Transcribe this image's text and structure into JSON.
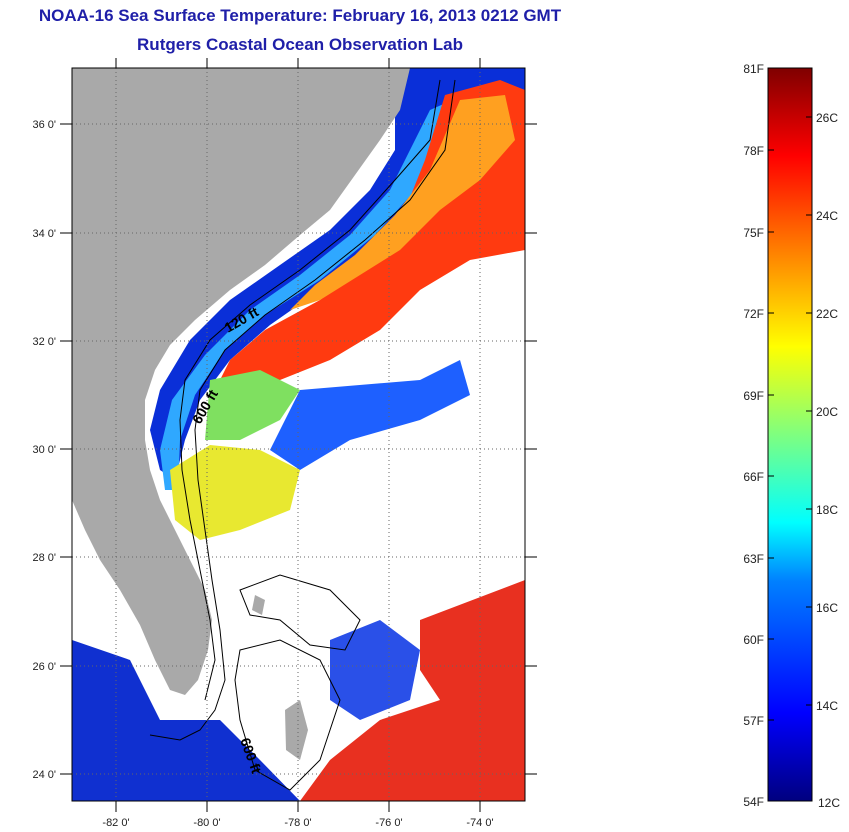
{
  "title": "NOAA-16 Sea Surface Temperature:  February 16, 2013 0212 GMT",
  "subtitle": "Rutgers Coastal Ocean Observation Lab",
  "map": {
    "lon_range": [
      -83,
      -73
    ],
    "lat_range": [
      23,
      37
    ],
    "lon_ticks": [
      {
        "value": -82,
        "label": "-82 0'"
      },
      {
        "value": -80,
        "label": "-80 0'"
      },
      {
        "value": -78,
        "label": "-78 0'"
      },
      {
        "value": -76,
        "label": "-76 0'"
      },
      {
        "value": -74,
        "label": "-74 0'"
      }
    ],
    "lat_ticks": [
      {
        "value": 36,
        "label": "36 0'"
      },
      {
        "value": 34,
        "label": "34 0'"
      },
      {
        "value": 32,
        "label": "32 0'"
      },
      {
        "value": 30,
        "label": "30 0'"
      },
      {
        "value": 28,
        "label": "28 0'"
      },
      {
        "value": 26,
        "label": "26 0'"
      },
      {
        "value": 24,
        "label": "24 0'"
      }
    ],
    "contour_labels": [
      "120 ft",
      "600 ft",
      "600 ft"
    ],
    "colors": {
      "land": "#a9a9a9",
      "cloud": "#ffffff"
    }
  },
  "colorbar": {
    "fahrenheit": [
      "81F",
      "78F",
      "75F",
      "72F",
      "69F",
      "66F",
      "63F",
      "60F",
      "57F",
      "54F"
    ],
    "celsius": [
      "26C",
      "24C",
      "22C",
      "20C",
      "18C",
      "16C",
      "14C",
      "12C"
    ]
  }
}
